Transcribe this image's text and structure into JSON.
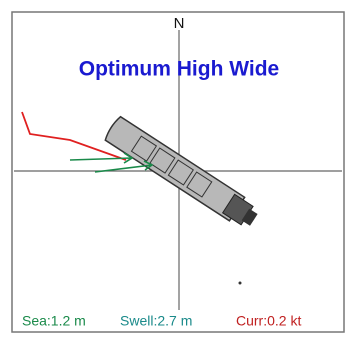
{
  "compass": {
    "north": "N"
  },
  "title": "Optimum High Wide",
  "status": {
    "sea": "Sea:1.2 m",
    "swell": "Swell:2.7 m",
    "current": "Curr:0.2 kt"
  }
}
